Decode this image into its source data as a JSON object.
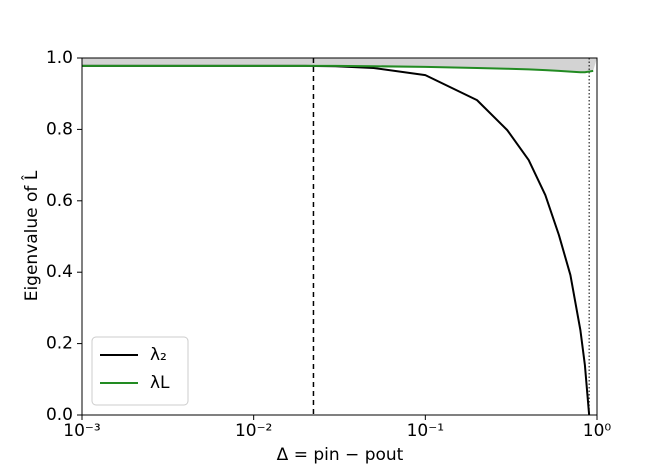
{
  "chart_data": {
    "type": "line",
    "x_label": "Δ = pin − pout",
    "y_label": "Eigenvalue of L̂",
    "x_log": true,
    "xlim": [
      0.001,
      1
    ],
    "ylim": [
      0,
      1
    ],
    "xticks": [
      {
        "value": 0.001,
        "label": "10⁻³"
      },
      {
        "value": 0.01,
        "label": "10⁻²"
      },
      {
        "value": 0.1,
        "label": "10⁻¹"
      },
      {
        "value": 1,
        "label": "10⁰"
      }
    ],
    "yticks": [
      {
        "value": 0,
        "label": "0.0"
      },
      0.2,
      0.4,
      0.6,
      0.8,
      {
        "value": 1,
        "label": "1.0"
      }
    ],
    "x": [
      0.001,
      0.002,
      0.005,
      0.01,
      0.02,
      0.03,
      0.05,
      0.1,
      0.2,
      0.3,
      0.4,
      0.5,
      0.6,
      0.7,
      0.8,
      0.85,
      0.9,
      0.95
    ],
    "series": [
      {
        "name": "λ₂",
        "color": "#000000",
        "values": [
          0.978,
          0.978,
          0.978,
          0.978,
          0.978,
          0.977,
          0.972,
          0.952,
          0.882,
          0.798,
          0.714,
          0.616,
          0.504,
          0.392,
          0.238,
          0.14,
          0,
          null
        ]
      },
      {
        "name": "λL",
        "color": "#228b22",
        "values": [
          0.978,
          0.978,
          0.978,
          0.978,
          0.978,
          0.978,
          0.977,
          0.975,
          0.972,
          0.97,
          0.968,
          0.966,
          0.964,
          0.962,
          0.96,
          0.96,
          0.962,
          0.964
        ]
      }
    ],
    "shade_color": "#d3d3d3",
    "vlines": [
      {
        "x": 0.0223,
        "style": "dashed"
      },
      {
        "x": 0.9,
        "style": "dotted"
      }
    ],
    "legend": "lower left"
  }
}
